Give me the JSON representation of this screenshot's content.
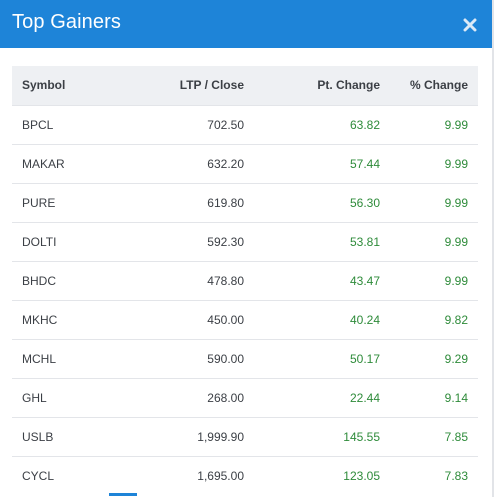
{
  "dialog": {
    "title": "Top Gainers",
    "close_icon": "close-icon"
  },
  "colors": {
    "header_bg": "#1e84d8",
    "positive": "#2e8b3a"
  },
  "table": {
    "columns": [
      "Symbol",
      "LTP / Close",
      "Pt. Change",
      "% Change"
    ],
    "rows": [
      {
        "symbol": "BPCL",
        "ltp": "702.50",
        "pt_change": "63.82",
        "pct_change": "9.99"
      },
      {
        "symbol": "MAKAR",
        "ltp": "632.20",
        "pt_change": "57.44",
        "pct_change": "9.99"
      },
      {
        "symbol": "PURE",
        "ltp": "619.80",
        "pt_change": "56.30",
        "pct_change": "9.99"
      },
      {
        "symbol": "DOLTI",
        "ltp": "592.30",
        "pt_change": "53.81",
        "pct_change": "9.99"
      },
      {
        "symbol": "BHDC",
        "ltp": "478.80",
        "pt_change": "43.47",
        "pct_change": "9.99"
      },
      {
        "symbol": "MKHC",
        "ltp": "450.00",
        "pt_change": "40.24",
        "pct_change": "9.82"
      },
      {
        "symbol": "MCHL",
        "ltp": "590.00",
        "pt_change": "50.17",
        "pct_change": "9.29"
      },
      {
        "symbol": "GHL",
        "ltp": "268.00",
        "pt_change": "22.44",
        "pct_change": "9.14"
      },
      {
        "symbol": "USLB",
        "ltp": "1,999.90",
        "pt_change": "145.55",
        "pct_change": "7.85"
      },
      {
        "symbol": "CYCL",
        "ltp": "1,695.00",
        "pt_change": "123.05",
        "pct_change": "7.83"
      }
    ]
  }
}
